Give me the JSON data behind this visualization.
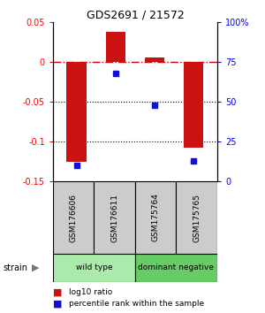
{
  "title": "GDS2691 / 21572",
  "samples": [
    "GSM176606",
    "GSM176611",
    "GSM175764",
    "GSM175765"
  ],
  "log10_ratio": [
    -0.125,
    0.038,
    0.005,
    -0.108
  ],
  "percentile_rank": [
    10,
    68,
    48,
    13
  ],
  "groups": [
    {
      "label": "wild type",
      "samples": [
        0,
        1
      ],
      "color": "#aaeaaa"
    },
    {
      "label": "dominant negative",
      "samples": [
        2,
        3
      ],
      "color": "#66cc66"
    }
  ],
  "ylim_left": [
    -0.15,
    0.05
  ],
  "ylim_right": [
    0,
    100
  ],
  "bar_color": "#cc1111",
  "dot_color": "#1111cc",
  "hline_0_color": "#cc0000",
  "hline_dotted_color": "#000000",
  "yticks_left": [
    -0.15,
    -0.1,
    -0.05,
    0.0,
    0.05
  ],
  "yticks_right": [
    0,
    25,
    50,
    75,
    100
  ],
  "ytick_labels_left": [
    "-0.15",
    "-0.1",
    "-0.05",
    "0",
    "0.05"
  ],
  "ytick_labels_right": [
    "0",
    "25",
    "50",
    "75",
    "100%"
  ],
  "legend_ratio_label": "log10 ratio",
  "legend_pct_label": "percentile rank within the sample",
  "strain_label": "strain"
}
